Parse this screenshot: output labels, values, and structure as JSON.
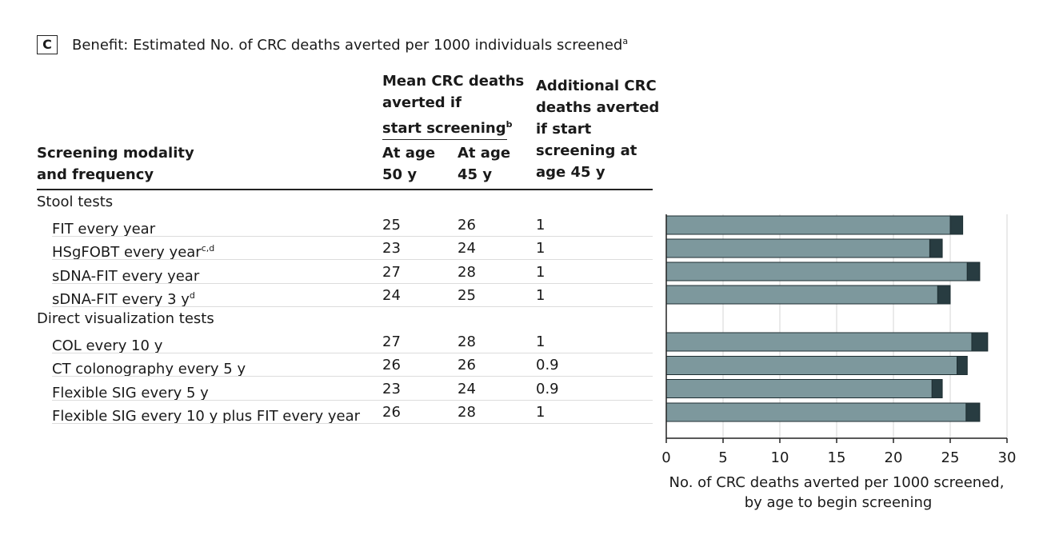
{
  "panel": {
    "letter": "C",
    "title": "Benefit: Estimated No. of CRC deaths averted per 1000 individuals screened",
    "title_sup": "a"
  },
  "table": {
    "col_modality": [
      "Screening modality",
      "and frequency"
    ],
    "col_mean_group": [
      "Mean CRC deaths",
      "averted if",
      "start screening"
    ],
    "col_mean_group_sup": "b",
    "col_age50": [
      "At age",
      "50 y"
    ],
    "col_age45": [
      "At age",
      "45 y"
    ],
    "col_additional": [
      "Additional CRC",
      "deaths averted",
      "if start",
      "screening at",
      "age 45 y"
    ],
    "rows": [
      {
        "type": "group",
        "label": "Stool tests"
      },
      {
        "type": "item",
        "label": "FIT every year",
        "sup": "",
        "age50": "25",
        "age45": "26",
        "additional": "1"
      },
      {
        "type": "item",
        "label": "HSgFOBT every year",
        "sup": "c,d",
        "age50": "23",
        "age45": "24",
        "additional": "1"
      },
      {
        "type": "item",
        "label": "sDNA-FIT every year",
        "sup": "",
        "age50": "27",
        "age45": "28",
        "additional": "1"
      },
      {
        "type": "item",
        "label": "sDNA-FIT every 3 y",
        "sup": "d",
        "age50": "24",
        "age45": "25",
        "additional": "1"
      },
      {
        "type": "group",
        "label": "Direct visualization tests"
      },
      {
        "type": "item",
        "label": "COL every 10 y",
        "sup": "",
        "age50": "27",
        "age45": "28",
        "additional": "1"
      },
      {
        "type": "item",
        "label": "CT colonography every 5 y",
        "sup": "",
        "age50": "26",
        "age45": "26",
        "additional": "0.9"
      },
      {
        "type": "item",
        "label": "Flexible SIG every 5 y",
        "sup": "",
        "age50": "23",
        "age45": "24",
        "additional": "0.9"
      },
      {
        "type": "item",
        "label": "Flexible SIG every 10 y plus FIT every year",
        "sup": "",
        "age50": "26",
        "age45": "28",
        "additional": "1"
      }
    ]
  },
  "chart_data": {
    "type": "bar",
    "orientation": "horizontal",
    "stacked": true,
    "categories": [
      "FIT every year",
      "HSgFOBT every year",
      "sDNA-FIT every year",
      "sDNA-FIT every 3 y",
      "COL every 10 y",
      "CT colonography every 5 y",
      "Flexible SIG every 5 y",
      "Flexible SIG every 10 y plus FIT every year"
    ],
    "series": [
      {
        "values": [
          25.0,
          23.2,
          26.5,
          23.9,
          26.9,
          25.6,
          23.4,
          26.4
        ],
        "color": "#7d989d"
      },
      {
        "values": [
          1.1,
          1.1,
          1.1,
          1.1,
          1.4,
          0.9,
          0.9,
          1.2
        ],
        "color": "#283c41"
      }
    ],
    "xlim": [
      0,
      30
    ],
    "xticks": [
      0,
      5,
      10,
      15,
      20,
      25,
      30
    ],
    "xlabel": [
      "No. of CRC deaths averted per 1000 screened,",
      "by age to begin screening"
    ],
    "grid": true
  },
  "colors": {
    "bar_base": "#7d989d",
    "bar_additional": "#283c41",
    "grid": "#d4d4d4",
    "rule": "#222222"
  }
}
